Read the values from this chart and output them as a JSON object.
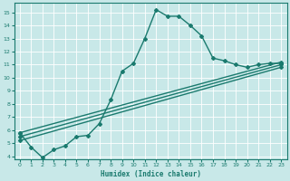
{
  "xlabel": "Humidex (Indice chaleur)",
  "bg_color": "#c8e8e8",
  "grid_color": "#ffffff",
  "line_color": "#1a7a6e",
  "line_width": 1.0,
  "marker": "D",
  "marker_size": 2.0,
  "xlim": [
    -0.5,
    23.5
  ],
  "ylim": [
    3.8,
    15.7
  ],
  "yticks": [
    4,
    5,
    6,
    7,
    8,
    9,
    10,
    11,
    12,
    13,
    14,
    15
  ],
  "xticks": [
    0,
    1,
    2,
    3,
    4,
    5,
    6,
    7,
    8,
    9,
    10,
    11,
    12,
    13,
    14,
    15,
    16,
    17,
    18,
    19,
    20,
    21,
    22,
    23
  ],
  "main_line_x": [
    0,
    1,
    2,
    3,
    4,
    5,
    6,
    7,
    8,
    9,
    10,
    11,
    12,
    13,
    14,
    15,
    16,
    17,
    18,
    19,
    20,
    21,
    22,
    23
  ],
  "main_line_y": [
    5.8,
    4.7,
    3.9,
    4.5,
    4.8,
    5.5,
    5.6,
    6.5,
    8.3,
    10.5,
    11.1,
    13.0,
    15.2,
    14.7,
    14.7,
    14.0,
    13.2,
    11.5,
    11.3,
    11.0,
    10.8,
    11.0,
    11.1,
    11.1
  ],
  "linear_lines": [
    {
      "x0": 0,
      "y0": 5.8,
      "x1": 23,
      "y1": 11.2
    },
    {
      "x0": 0,
      "y0": 5.5,
      "x1": 23,
      "y1": 11.0
    },
    {
      "x0": 0,
      "y0": 5.2,
      "x1": 23,
      "y1": 10.8
    }
  ]
}
